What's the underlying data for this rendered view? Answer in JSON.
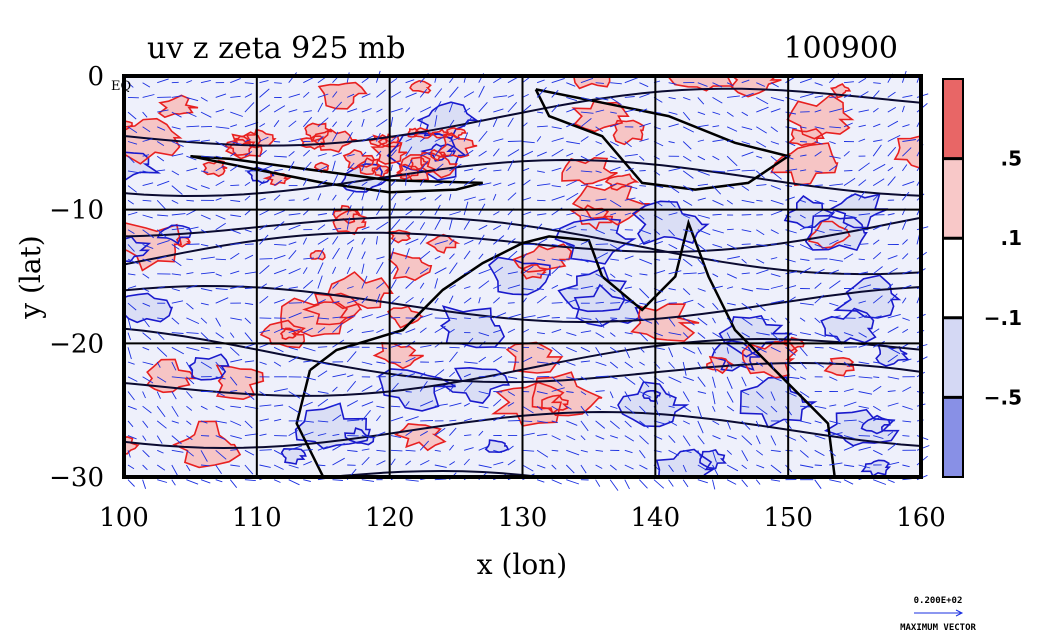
{
  "chart_data": {
    "type": "heatmap",
    "title": "uv z zeta 925 mb",
    "date_label": "100900",
    "xlabel": "x (lon)",
    "ylabel": "y (lat)",
    "xlim": [
      100,
      160
    ],
    "ylim": [
      -30,
      0
    ],
    "xticks": [
      100,
      110,
      120,
      130,
      140,
      150,
      160
    ],
    "xtick_labels": [
      "100",
      "110",
      "120",
      "130",
      "140",
      "150",
      "160"
    ],
    "yticks": [
      0,
      -10,
      -20,
      -30
    ],
    "ytick_labels": [
      "0",
      "−10",
      "−20",
      "−30"
    ],
    "corner_label": "EQ",
    "grid": true,
    "colorbar": {
      "boundaries": [
        0.5,
        0.1,
        -0.1,
        -0.5
      ],
      "labels": [
        ".5",
        ".1",
        "−.1",
        "−.5"
      ],
      "colors": [
        "#e86666",
        "#f8c8c8",
        "#ffffff",
        "#d4d8f4",
        "#8890e6"
      ]
    },
    "vector_key": {
      "value_label": "0.200E+02",
      "caption": "MAXIMUM VECTOR"
    },
    "colors": {
      "vector": "#1a2fe0",
      "positive_contour": "#e82020",
      "negative_contour": "#1a1acc",
      "height_contour": "#0a0a30",
      "positive_fill": "#f6c2c2",
      "negative_fill": "#d8dcf4"
    }
  }
}
